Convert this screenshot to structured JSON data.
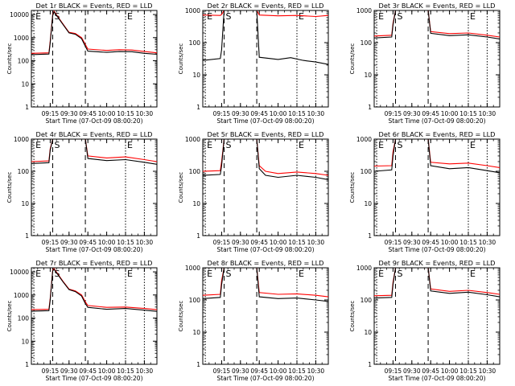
{
  "colors": {
    "events": "#000000",
    "lld": "#ff0000",
    "axes": "#000000",
    "background": "#ffffff"
  },
  "chart_data": [
    {
      "type": "line",
      "title": "Det 1r BLACK = Events, RED = LLD",
      "xlabel": "Start Time (07-Oct-09 08:00:20)",
      "ylabel": "Counts/sec",
      "yscale": "log",
      "ylim": [
        1,
        15000
      ],
      "xlim": [
        "09:00",
        "10:40"
      ],
      "xticks": [
        "09:15",
        "09:30",
        "09:45",
        "10:00",
        "10:15",
        "10:30"
      ],
      "yticks": [
        "1",
        "10",
        "100",
        "1000",
        "10000"
      ],
      "markers": [
        {
          "time": "09:02",
          "label": "E"
        },
        {
          "time": "09:17",
          "label": "S"
        },
        {
          "time": "09:43",
          "label": ""
        },
        {
          "time": "10:15",
          "label": "E"
        },
        {
          "time": "10:30",
          "label": ""
        }
      ],
      "series": [
        {
          "name": "LLD",
          "x": [
            "09:00",
            "09:14",
            "09:15",
            "09:17",
            "09:18",
            "09:25",
            "09:30",
            "09:35",
            "09:40",
            "09:43",
            "09:45",
            "10:00",
            "10:10",
            "10:20",
            "10:30",
            "10:40"
          ],
          "y": [
            210,
            220,
            700,
            10000,
            14000,
            4000,
            1700,
            1500,
            1000,
            500,
            320,
            280,
            300,
            290,
            250,
            220
          ]
        },
        {
          "name": "Events",
          "x": [
            "09:00",
            "09:14",
            "09:15",
            "09:17",
            "09:18",
            "09:25",
            "09:30",
            "09:35",
            "09:40",
            "09:43",
            "09:45",
            "10:00",
            "10:10",
            "10:20",
            "10:30",
            "10:40"
          ],
          "y": [
            185,
            195,
            600,
            9000,
            13000,
            3800,
            1600,
            1400,
            900,
            420,
            260,
            230,
            250,
            245,
            210,
            190
          ]
        }
      ]
    },
    {
      "type": "line",
      "title": "Det 2r BLACK = Events, RED = LLD",
      "xlabel": "Start Time (07-Oct-09 08:00:20)",
      "ylabel": "Counts/sec",
      "yscale": "log",
      "ylim": [
        1,
        1000
      ],
      "xlim": [
        "09:00",
        "10:40"
      ],
      "xticks": [
        "09:15",
        "09:30",
        "09:45",
        "10:00",
        "10:15",
        "10:30"
      ],
      "yticks": [
        "1",
        "10",
        "100",
        "1000"
      ],
      "markers": [
        {
          "time": "09:02",
          "label": "E"
        },
        {
          "time": "09:17",
          "label": "S"
        },
        {
          "time": "09:43",
          "label": ""
        },
        {
          "time": "10:15",
          "label": "E"
        },
        {
          "time": "10:30",
          "label": ""
        }
      ],
      "series": [
        {
          "name": "LLD",
          "x": [
            "09:00",
            "09:14",
            "09:15",
            "09:17",
            "09:43",
            "09:45",
            "10:00",
            "10:15",
            "10:30",
            "10:40"
          ],
          "y": [
            720,
            700,
            750,
            1000,
            1000,
            720,
            680,
            700,
            650,
            700
          ]
        },
        {
          "name": "Events",
          "x": [
            "09:00",
            "09:14",
            "09:15",
            "09:17",
            "09:43",
            "09:45",
            "10:00",
            "10:10",
            "10:20",
            "10:30",
            "10:40"
          ],
          "y": [
            28,
            32,
            60,
            1000,
            1000,
            35,
            30,
            34,
            28,
            25,
            21
          ]
        }
      ]
    },
    {
      "type": "line",
      "title": "Det 3r BLACK = Events, RED = LLD",
      "xlabel": "Start Time (07-Oct-09 08:00:20)",
      "ylabel": "Counts/sec",
      "yscale": "log",
      "ylim": [
        1,
        1000
      ],
      "xlim": [
        "09:00",
        "10:40"
      ],
      "xticks": [
        "09:15",
        "09:30",
        "09:45",
        "10:00",
        "10:15",
        "10:30"
      ],
      "yticks": [
        "1",
        "10",
        "100",
        "1000"
      ],
      "markers": [
        {
          "time": "09:02",
          "label": "E"
        },
        {
          "time": "09:17",
          "label": "S"
        },
        {
          "time": "09:43",
          "label": ""
        },
        {
          "time": "10:15",
          "label": "E"
        },
        {
          "time": "10:30",
          "label": ""
        }
      ],
      "series": [
        {
          "name": "LLD",
          "x": [
            "09:00",
            "09:14",
            "09:15",
            "09:17",
            "09:43",
            "09:45",
            "10:00",
            "10:15",
            "10:30",
            "10:40"
          ],
          "y": [
            160,
            170,
            400,
            1000,
            1000,
            220,
            190,
            200,
            170,
            150
          ]
        },
        {
          "name": "Events",
          "x": [
            "09:00",
            "09:14",
            "09:15",
            "09:17",
            "09:43",
            "09:45",
            "10:00",
            "10:15",
            "10:30",
            "10:40"
          ],
          "y": [
            140,
            150,
            350,
            1000,
            1000,
            195,
            165,
            175,
            150,
            130
          ]
        }
      ]
    },
    {
      "type": "line",
      "title": "Det 4r BLACK = Events, RED = LLD",
      "xlabel": "Start Time (07-Oct-09 08:00:20)",
      "ylabel": "Counts/sec",
      "yscale": "log",
      "ylim": [
        1,
        1000
      ],
      "xlim": [
        "09:00",
        "10:40"
      ],
      "xticks": [
        "09:15",
        "09:30",
        "09:45",
        "10:00",
        "10:15",
        "10:30"
      ],
      "yticks": [
        "1",
        "10",
        "100",
        "1000"
      ],
      "markers": [
        {
          "time": "09:02",
          "label": "E"
        },
        {
          "time": "09:17",
          "label": "S"
        },
        {
          "time": "09:43",
          "label": ""
        },
        {
          "time": "10:15",
          "label": "E"
        },
        {
          "time": "10:30",
          "label": ""
        }
      ],
      "series": [
        {
          "name": "LLD",
          "x": [
            "09:00",
            "09:14",
            "09:15",
            "09:17",
            "09:43",
            "09:45",
            "10:00",
            "10:15",
            "10:30",
            "10:40"
          ],
          "y": [
            200,
            210,
            500,
            1000,
            1000,
            300,
            260,
            280,
            230,
            200
          ]
        },
        {
          "name": "Events",
          "x": [
            "09:00",
            "09:14",
            "09:15",
            "09:17",
            "09:43",
            "09:45",
            "10:00",
            "10:15",
            "10:30",
            "10:40"
          ],
          "y": [
            175,
            185,
            450,
            1000,
            1000,
            250,
            215,
            230,
            190,
            165
          ]
        }
      ]
    },
    {
      "type": "line",
      "title": "Det 5r BLACK = Events, RED = LLD",
      "xlabel": "Start Time (07-Oct-09 08:00:20)",
      "ylabel": "Counts/sec",
      "yscale": "log",
      "ylim": [
        1,
        1000
      ],
      "xlim": [
        "09:00",
        "10:40"
      ],
      "xticks": [
        "09:15",
        "09:30",
        "09:45",
        "10:00",
        "10:15",
        "10:30"
      ],
      "yticks": [
        "1",
        "10",
        "100",
        "1000"
      ],
      "markers": [
        {
          "time": "09:02",
          "label": "E"
        },
        {
          "time": "09:17",
          "label": "S"
        },
        {
          "time": "09:43",
          "label": ""
        },
        {
          "time": "10:15",
          "label": "E"
        },
        {
          "time": "10:30",
          "label": ""
        }
      ],
      "series": [
        {
          "name": "LLD",
          "x": [
            "09:00",
            "09:14",
            "09:15",
            "09:17",
            "09:43",
            "09:45",
            "09:50",
            "10:00",
            "10:15",
            "10:30",
            "10:40"
          ],
          "y": [
            100,
            105,
            200,
            1000,
            1000,
            150,
            100,
            85,
            95,
            85,
            75
          ]
        },
        {
          "name": "Events",
          "x": [
            "09:00",
            "09:14",
            "09:15",
            "09:17",
            "09:43",
            "09:45",
            "09:50",
            "10:00",
            "10:15",
            "10:30",
            "10:40"
          ],
          "y": [
            75,
            80,
            150,
            1000,
            1000,
            120,
            75,
            65,
            75,
            65,
            55
          ]
        }
      ]
    },
    {
      "type": "line",
      "title": "Det 6r BLACK = Events, RED = LLD",
      "xlabel": "Start Time (07-Oct-09 08:00:20)",
      "ylabel": "Counts/sec",
      "yscale": "log",
      "ylim": [
        1,
        1000
      ],
      "xlim": [
        "09:00",
        "10:40"
      ],
      "xticks": [
        "09:15",
        "09:30",
        "09:45",
        "10:00",
        "10:15",
        "10:30"
      ],
      "yticks": [
        "1",
        "10",
        "100",
        "1000"
      ],
      "markers": [
        {
          "time": "09:02",
          "label": "E"
        },
        {
          "time": "09:17",
          "label": "S"
        },
        {
          "time": "09:43",
          "label": ""
        },
        {
          "time": "10:15",
          "label": "E"
        },
        {
          "time": "10:30",
          "label": ""
        }
      ],
      "series": [
        {
          "name": "LLD",
          "x": [
            "09:00",
            "09:14",
            "09:15",
            "09:17",
            "09:43",
            "09:45",
            "10:00",
            "10:15",
            "10:30",
            "10:40"
          ],
          "y": [
            145,
            150,
            400,
            1000,
            1000,
            190,
            170,
            180,
            150,
            130
          ]
        },
        {
          "name": "Events",
          "x": [
            "09:00",
            "09:14",
            "09:15",
            "09:17",
            "09:43",
            "09:45",
            "10:00",
            "10:15",
            "10:30",
            "10:40"
          ],
          "y": [
            100,
            110,
            300,
            1000,
            1000,
            150,
            120,
            130,
            105,
            90
          ]
        }
      ]
    },
    {
      "type": "line",
      "title": "Det 7r BLACK = Events, RED = LLD",
      "xlabel": "Start Time (07-Oct-09 08:00:20)",
      "ylabel": "Counts/sec",
      "yscale": "log",
      "ylim": [
        1,
        15000
      ],
      "xlim": [
        "09:00",
        "10:40"
      ],
      "xticks": [
        "09:15",
        "09:30",
        "09:45",
        "10:00",
        "10:15",
        "10:30"
      ],
      "yticks": [
        "1",
        "10",
        "100",
        "1000",
        "10000"
      ],
      "markers": [
        {
          "time": "09:02",
          "label": "E"
        },
        {
          "time": "09:17",
          "label": "S"
        },
        {
          "time": "09:43",
          "label": ""
        },
        {
          "time": "10:15",
          "label": "E"
        },
        {
          "time": "10:30",
          "label": ""
        }
      ],
      "series": [
        {
          "name": "LLD",
          "x": [
            "09:00",
            "09:14",
            "09:15",
            "09:17",
            "09:18",
            "09:25",
            "09:30",
            "09:35",
            "09:40",
            "09:43",
            "09:45",
            "10:00",
            "10:15",
            "10:30",
            "10:40"
          ],
          "y": [
            230,
            240,
            700,
            12000,
            14000,
            4000,
            1800,
            1500,
            1000,
            500,
            350,
            290,
            300,
            260,
            230
          ]
        },
        {
          "name": "Events",
          "x": [
            "09:00",
            "09:14",
            "09:15",
            "09:17",
            "09:18",
            "09:25",
            "09:30",
            "09:35",
            "09:40",
            "09:43",
            "09:45",
            "10:00",
            "10:15",
            "10:30",
            "10:40"
          ],
          "y": [
            200,
            210,
            600,
            11000,
            13000,
            3800,
            1700,
            1400,
            900,
            420,
            290,
            240,
            260,
            220,
            195
          ]
        }
      ]
    },
    {
      "type": "line",
      "title": "Det 8r BLACK = Events, RED = LLD",
      "xlabel": "Start Time (07-Oct-09 08:00:20)",
      "ylabel": "Counts/sec",
      "yscale": "log",
      "ylim": [
        1,
        1000
      ],
      "xlim": [
        "09:00",
        "10:40"
      ],
      "xticks": [
        "09:15",
        "09:30",
        "09:45",
        "10:00",
        "10:15",
        "10:30"
      ],
      "yticks": [
        "1",
        "10",
        "100",
        "1000"
      ],
      "markers": [
        {
          "time": "09:02",
          "label": "E"
        },
        {
          "time": "09:17",
          "label": "S"
        },
        {
          "time": "09:43",
          "label": ""
        },
        {
          "time": "10:15",
          "label": "E"
        },
        {
          "time": "10:30",
          "label": ""
        }
      ],
      "series": [
        {
          "name": "LLD",
          "x": [
            "09:00",
            "09:14",
            "09:15",
            "09:17",
            "09:43",
            "09:45",
            "10:00",
            "10:15",
            "10:30",
            "10:40"
          ],
          "y": [
            140,
            150,
            400,
            1000,
            1000,
            170,
            150,
            155,
            140,
            125
          ]
        },
        {
          "name": "Events",
          "x": [
            "09:00",
            "09:14",
            "09:15",
            "09:17",
            "09:43",
            "09:45",
            "10:00",
            "10:15",
            "10:30",
            "10:40"
          ],
          "y": [
            110,
            120,
            300,
            1000,
            1000,
            125,
            110,
            115,
            100,
            90
          ]
        }
      ]
    },
    {
      "type": "line",
      "title": "Det 9r BLACK = Events, RED = LLD",
      "xlabel": "Start Time (07-Oct-09 08:00:20)",
      "ylabel": "Counts/sec",
      "yscale": "log",
      "ylim": [
        1,
        1000
      ],
      "xlim": [
        "09:00",
        "10:40"
      ],
      "xticks": [
        "09:15",
        "09:30",
        "09:45",
        "10:00",
        "10:15",
        "10:30"
      ],
      "yticks": [
        "1",
        "10",
        "100",
        "1000"
      ],
      "markers": [
        {
          "time": "09:02",
          "label": "E"
        },
        {
          "time": "09:17",
          "label": "S"
        },
        {
          "time": "09:43",
          "label": ""
        },
        {
          "time": "10:15",
          "label": "E"
        },
        {
          "time": "10:30",
          "label": ""
        }
      ],
      "series": [
        {
          "name": "LLD",
          "x": [
            "09:00",
            "09:14",
            "09:15",
            "09:17",
            "09:43",
            "09:45",
            "10:00",
            "10:15",
            "10:30",
            "10:40"
          ],
          "y": [
            135,
            140,
            350,
            1000,
            1000,
            220,
            185,
            200,
            170,
            150
          ]
        },
        {
          "name": "Events",
          "x": [
            "09:00",
            "09:14",
            "09:15",
            "09:17",
            "09:43",
            "09:45",
            "10:00",
            "10:15",
            "10:30",
            "10:40"
          ],
          "y": [
            115,
            120,
            300,
            1000,
            1000,
            190,
            160,
            175,
            145,
            125
          ]
        }
      ]
    }
  ]
}
